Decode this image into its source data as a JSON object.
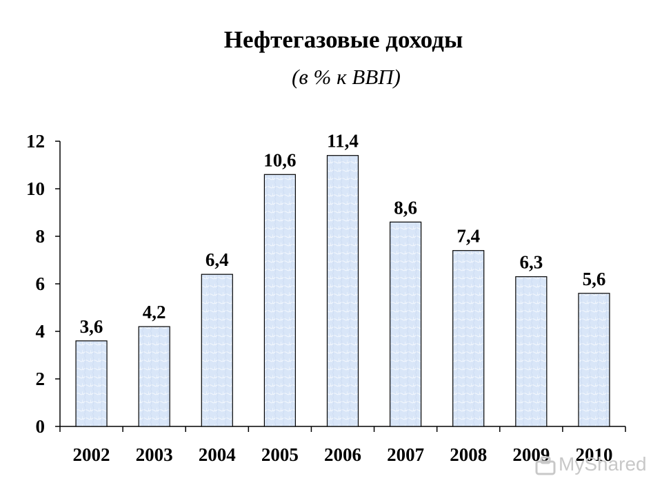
{
  "chart_data": {
    "type": "bar",
    "title": "Нефтегазовые доходы",
    "subtitle": "(в % к ВВП)",
    "xlabel": "",
    "ylabel": "",
    "categories": [
      "2002",
      "2003",
      "2004",
      "2005",
      "2006",
      "2007",
      "2008",
      "2009",
      "2010"
    ],
    "values": [
      3.6,
      4.2,
      6.4,
      10.6,
      11.4,
      8.6,
      7.4,
      6.3,
      5.6
    ],
    "value_labels": [
      "3,6",
      "4,2",
      "6,4",
      "10,6",
      "11,4",
      "8,6",
      "7,4",
      "6,3",
      "5,6"
    ],
    "ylim": [
      0,
      12
    ],
    "yticks": [
      0,
      2,
      4,
      6,
      8,
      10,
      12
    ],
    "grid": false,
    "legend": "none",
    "bar_fill": "#d9e6f8",
    "bar_stroke": "#000000"
  },
  "watermark": {
    "text": "MyShared"
  }
}
